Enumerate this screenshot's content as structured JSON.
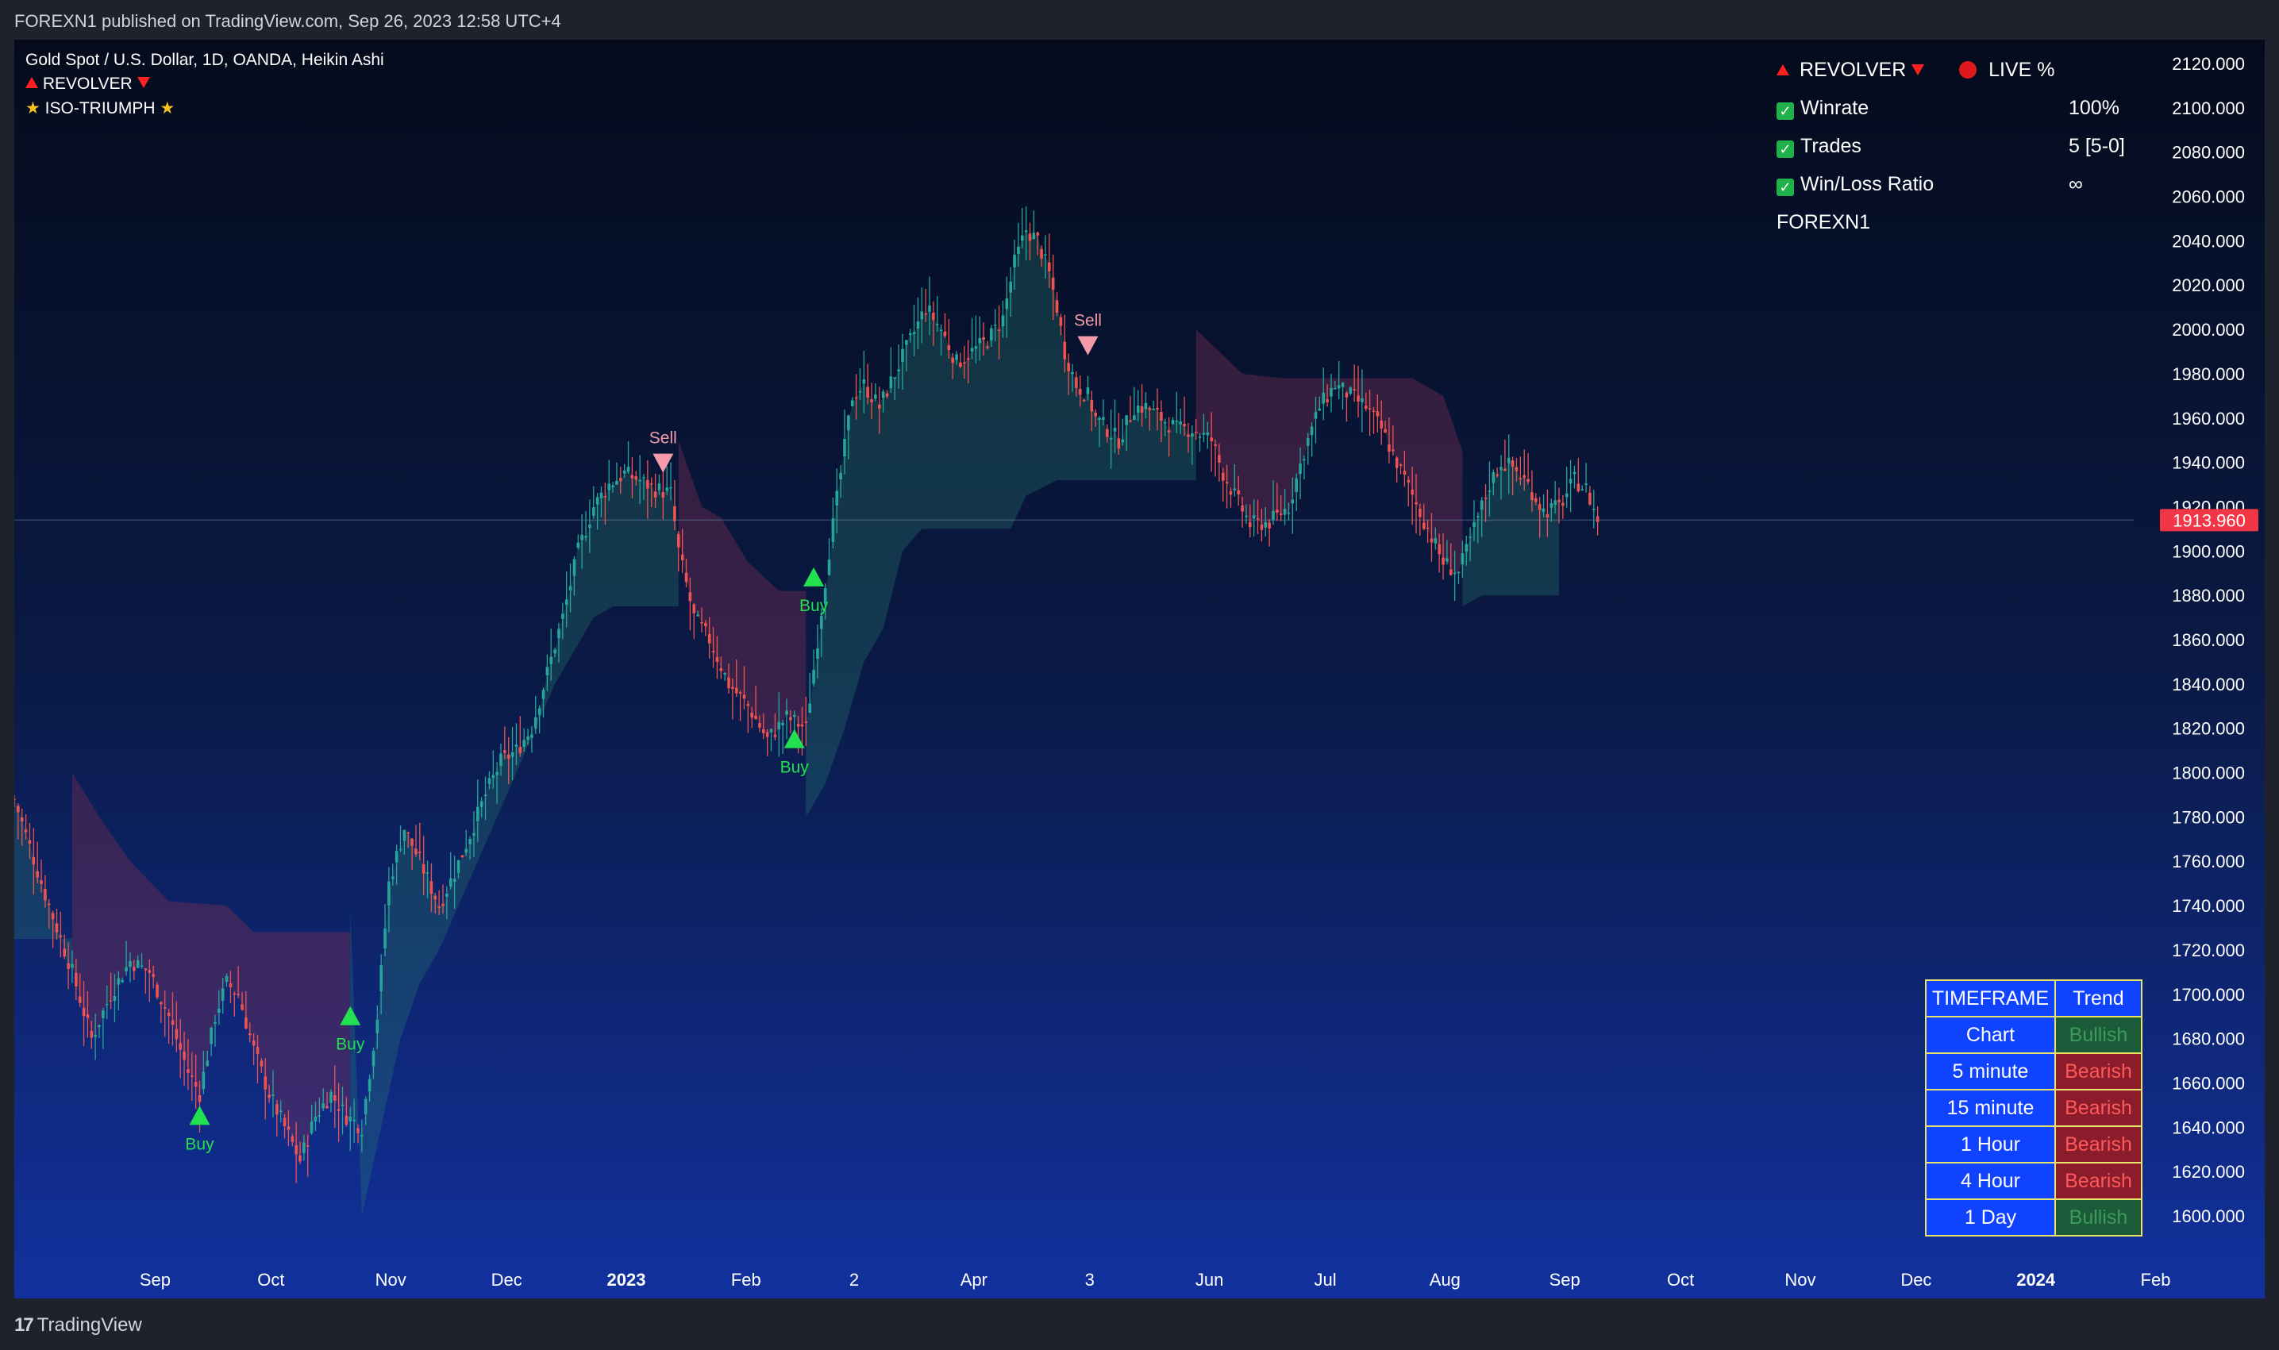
{
  "header": {
    "published": "FOREXN1 published on TradingView.com, Sep 26, 2023 12:58 UTC+4"
  },
  "legend": {
    "symbol": "Gold Spot / U.S. Dollar, 1D, OANDA, Heikin Ashi",
    "indicator1": "REVOLVER",
    "indicator2": "ISO-TRIUMPH"
  },
  "stats": {
    "title": "REVOLVER",
    "live": "LIVE %",
    "rows": [
      {
        "label": "Winrate",
        "value": "100%"
      },
      {
        "label": "Trades",
        "value": "5 [5-0]"
      },
      {
        "label": "Win/Loss Ratio",
        "value": "∞"
      }
    ],
    "author": "FOREXN1"
  },
  "timeframe_table": {
    "header": [
      "TIMEFRAME",
      "Trend"
    ],
    "rows": [
      {
        "tf": "Chart",
        "trend": "Bullish"
      },
      {
        "tf": "5 minute",
        "trend": "Bearish"
      },
      {
        "tf": "15 minute",
        "trend": "Bearish"
      },
      {
        "tf": "1 Hour",
        "trend": "Bearish"
      },
      {
        "tf": "4 Hour",
        "trend": "Bearish"
      },
      {
        "tf": "1 Day",
        "trend": "Bullish"
      }
    ]
  },
  "colors": {
    "bull": "#26a69a",
    "bear": "#ef5350",
    "bullish_text": "#3d9a5a",
    "bearish_text": "#ff5a5a",
    "bullish_bg": "#1c5b3a",
    "bearish_bg": "#8a1c2c",
    "buy": "#22e052",
    "sell": "#f59aa8",
    "price_label": "#f23645"
  },
  "footer": {
    "brand": "TradingView"
  },
  "chart_data": {
    "type": "candlestick",
    "style": "Heikin Ashi",
    "ylim": [
      1585,
      2130
    ],
    "y_ticks": [
      1600,
      1620,
      1640,
      1660,
      1680,
      1700,
      1720,
      1740,
      1760,
      1780,
      1800,
      1820,
      1840,
      1860,
      1880,
      1900,
      1920,
      1940,
      1960,
      1980,
      2000,
      2020,
      2040,
      2060,
      2080,
      2100,
      2120
    ],
    "y_tick_labels": [
      "1600.000",
      "1620.000",
      "1640.000",
      "1660.000",
      "1680.000",
      "1700.000",
      "1720.000",
      "1740.000",
      "1760.000",
      "1780.000",
      "1800.000",
      "1820.000",
      "1840.000",
      "1860.000",
      "1880.000",
      "1900.000",
      "1920.000",
      "1940.000",
      "1960.000",
      "1980.000",
      "2000.000",
      "2020.000",
      "2040.000",
      "2060.000",
      "2080.000",
      "2100.000",
      "2120.000"
    ],
    "x_labels": [
      {
        "text": "Sep",
        "day": 19,
        "bold": false
      },
      {
        "text": "Oct",
        "day": 49,
        "bold": false
      },
      {
        "text": "Nov",
        "day": 80,
        "bold": false
      },
      {
        "text": "Dec",
        "day": 110,
        "bold": false
      },
      {
        "text": "2023",
        "day": 141,
        "bold": true
      },
      {
        "text": "Feb",
        "day": 172,
        "bold": false
      },
      {
        "text": "2",
        "day": 200,
        "bold": false
      },
      {
        "text": "Apr",
        "day": 231,
        "bold": false
      },
      {
        "text": "3",
        "day": 261,
        "bold": false
      },
      {
        "text": "Jun",
        "day": 292,
        "bold": false
      },
      {
        "text": "Jul",
        "day": 322,
        "bold": false
      },
      {
        "text": "Aug",
        "day": 353,
        "bold": false
      },
      {
        "text": "Sep",
        "day": 384,
        "bold": false
      },
      {
        "text": "Oct",
        "day": 414,
        "bold": false
      },
      {
        "text": "Nov",
        "day": 445,
        "bold": false
      },
      {
        "text": "Dec",
        "day": 475,
        "bold": false
      },
      {
        "text": "2024",
        "day": 506,
        "bold": true
      },
      {
        "text": "Feb",
        "day": 537,
        "bold": false
      }
    ],
    "last_price": 1913.96,
    "last_price_label": "1913.960",
    "price_path": [
      [
        0,
        1788
      ],
      [
        8,
        1745
      ],
      [
        15,
        1710
      ],
      [
        20,
        1680
      ],
      [
        25,
        1700
      ],
      [
        30,
        1715
      ],
      [
        35,
        1710
      ],
      [
        40,
        1690
      ],
      [
        45,
        1665
      ],
      [
        48,
        1655
      ],
      [
        52,
        1690
      ],
      [
        55,
        1705
      ],
      [
        58,
        1700
      ],
      [
        62,
        1675
      ],
      [
        66,
        1655
      ],
      [
        70,
        1640
      ],
      [
        74,
        1625
      ],
      [
        78,
        1645
      ],
      [
        82,
        1655
      ],
      [
        86,
        1645
      ],
      [
        90,
        1640
      ],
      [
        94,
        1690
      ],
      [
        97,
        1750
      ],
      [
        101,
        1775
      ],
      [
        105,
        1760
      ],
      [
        110,
        1740
      ],
      [
        114,
        1755
      ],
      [
        118,
        1772
      ],
      [
        122,
        1790
      ],
      [
        126,
        1805
      ],
      [
        130,
        1810
      ],
      [
        134,
        1820
      ],
      [
        138,
        1845
      ],
      [
        142,
        1870
      ],
      [
        146,
        1900
      ],
      [
        150,
        1920
      ],
      [
        154,
        1930
      ],
      [
        158,
        1935
      ],
      [
        162,
        1932
      ],
      [
        166,
        1928
      ],
      [
        170,
        1926
      ],
      [
        172,
        1900
      ],
      [
        176,
        1870
      ],
      [
        180,
        1860
      ],
      [
        185,
        1840
      ],
      [
        190,
        1830
      ],
      [
        195,
        1815
      ],
      [
        200,
        1825
      ],
      [
        205,
        1820
      ],
      [
        208,
        1860
      ],
      [
        211,
        1900
      ],
      [
        214,
        1935
      ],
      [
        217,
        1970
      ],
      [
        220,
        1975
      ],
      [
        224,
        1965
      ],
      [
        228,
        1980
      ],
      [
        232,
        1995
      ],
      [
        236,
        2010
      ],
      [
        240,
        2000
      ],
      [
        244,
        1985
      ],
      [
        248,
        1990
      ],
      [
        252,
        1995
      ],
      [
        256,
        2005
      ],
      [
        259,
        2030
      ],
      [
        262,
        2045
      ],
      [
        265,
        2040
      ],
      [
        268,
        2025
      ],
      [
        270,
        2010
      ],
      [
        272,
        1990
      ],
      [
        275,
        1975
      ],
      [
        278,
        1970
      ],
      [
        280,
        1960
      ],
      [
        283,
        1955
      ],
      [
        286,
        1950
      ],
      [
        290,
        1965
      ],
      [
        293,
        1965
      ],
      [
        297,
        1960
      ],
      [
        301,
        1955
      ],
      [
        305,
        1955
      ],
      [
        310,
        1950
      ],
      [
        313,
        1935
      ],
      [
        316,
        1925
      ],
      [
        320,
        1912
      ],
      [
        325,
        1913
      ],
      [
        330,
        1920
      ],
      [
        334,
        1945
      ],
      [
        338,
        1965
      ],
      [
        342,
        1975
      ],
      [
        346,
        1970
      ],
      [
        350,
        1965
      ],
      [
        354,
        1955
      ],
      [
        358,
        1940
      ],
      [
        362,
        1925
      ],
      [
        366,
        1910
      ],
      [
        370,
        1895
      ],
      [
        374,
        1890
      ],
      [
        378,
        1910
      ],
      [
        382,
        1930
      ],
      [
        385,
        1940
      ],
      [
        388,
        1938
      ],
      [
        392,
        1930
      ],
      [
        396,
        1918
      ],
      [
        400,
        1920
      ],
      [
        404,
        1932
      ],
      [
        407,
        1928
      ],
      [
        410,
        1914
      ]
    ],
    "cloud_segments": [
      {
        "from": 0,
        "to": 15,
        "type": "bullish",
        "lower_path": [
          [
            0,
            1725
          ],
          [
            15,
            1725
          ]
        ]
      },
      {
        "from": 15,
        "to": 87,
        "type": "bearish",
        "upper_path": [
          [
            15,
            1800
          ],
          [
            22,
            1780
          ],
          [
            30,
            1760
          ],
          [
            40,
            1742
          ],
          [
            55,
            1740
          ],
          [
            62,
            1728
          ],
          [
            72,
            1728
          ],
          [
            87,
            1728
          ]
        ]
      },
      {
        "from": 87,
        "to": 172,
        "type": "bullish",
        "lower_path": [
          [
            87,
            1740
          ],
          [
            90,
            1600
          ],
          [
            95,
            1640
          ],
          [
            100,
            1680
          ],
          [
            105,
            1705
          ],
          [
            110,
            1720
          ],
          [
            115,
            1740
          ],
          [
            120,
            1760
          ],
          [
            125,
            1780
          ],
          [
            130,
            1800
          ],
          [
            135,
            1820
          ],
          [
            140,
            1840
          ],
          [
            145,
            1855
          ],
          [
            150,
            1870
          ],
          [
            155,
            1875
          ],
          [
            172,
            1875
          ]
        ]
      },
      {
        "from": 172,
        "to": 205,
        "type": "bearish",
        "upper_path": [
          [
            172,
            1950
          ],
          [
            178,
            1920
          ],
          [
            183,
            1915
          ],
          [
            190,
            1895
          ],
          [
            198,
            1882
          ],
          [
            205,
            1882
          ]
        ]
      },
      {
        "from": 205,
        "to": 306,
        "type": "bullish",
        "lower_path": [
          [
            205,
            1780
          ],
          [
            210,
            1795
          ],
          [
            215,
            1820
          ],
          [
            220,
            1850
          ],
          [
            225,
            1865
          ],
          [
            230,
            1900
          ],
          [
            235,
            1910
          ],
          [
            245,
            1910
          ],
          [
            258,
            1910
          ],
          [
            262,
            1925
          ],
          [
            270,
            1932
          ],
          [
            280,
            1932
          ],
          [
            306,
            1932
          ]
        ]
      },
      {
        "from": 306,
        "to": 375,
        "type": "bearish",
        "upper_path": [
          [
            306,
            2000
          ],
          [
            312,
            1990
          ],
          [
            318,
            1980
          ],
          [
            328,
            1978
          ],
          [
            340,
            1978
          ],
          [
            355,
            1978
          ],
          [
            362,
            1978
          ],
          [
            370,
            1970
          ],
          [
            375,
            1945
          ]
        ]
      },
      {
        "from": 375,
        "to": 400,
        "type": "bullish",
        "lower_path": [
          [
            375,
            1875
          ],
          [
            380,
            1880
          ],
          [
            390,
            1880
          ],
          [
            400,
            1880
          ]
        ]
      }
    ],
    "signals": [
      {
        "type": "Buy",
        "day": 48,
        "price": 1645
      },
      {
        "type": "Buy",
        "day": 87,
        "price": 1690
      },
      {
        "type": "Sell",
        "day": 168,
        "price": 1940
      },
      {
        "type": "Buy",
        "day": 202,
        "price": 1815
      },
      {
        "type": "Buy",
        "day": 207,
        "price": 1888
      },
      {
        "type": "Sell",
        "day": 278,
        "price": 1993
      }
    ]
  }
}
